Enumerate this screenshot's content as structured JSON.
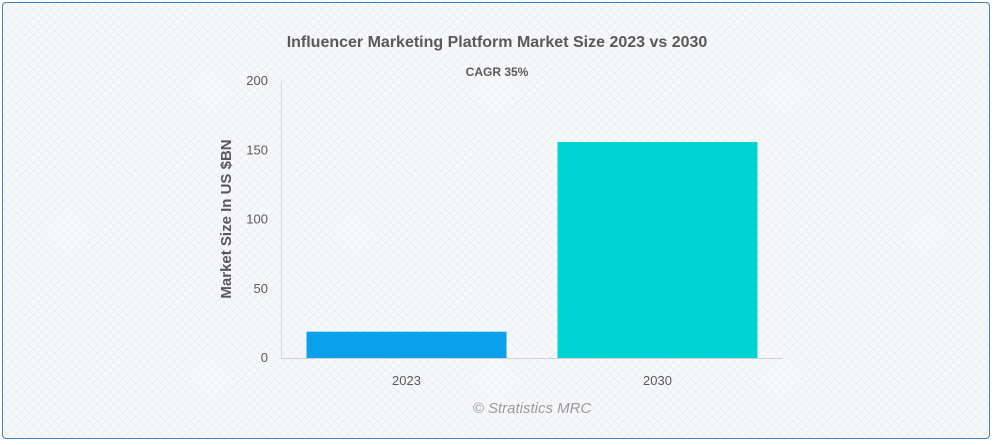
{
  "chart_data": {
    "type": "bar",
    "title": "Influencer Marketing Platform Market Size 2023 vs 2030",
    "subtitle": "CAGR 35%",
    "categories": [
      "2023",
      "2030"
    ],
    "values": [
      19,
      156
    ],
    "ylabel": "Market Size In US $BN",
    "xlabel": "",
    "ylim": [
      0,
      200
    ],
    "yticks": [
      0,
      50,
      100,
      150,
      200
    ],
    "ytick_labels": [
      "0",
      "50",
      "100",
      "150",
      "200"
    ],
    "grid": false,
    "bar_colors": [
      "#0aa0ea",
      "#00d3d3"
    ]
  },
  "watermark": "© Stratistics MRC"
}
